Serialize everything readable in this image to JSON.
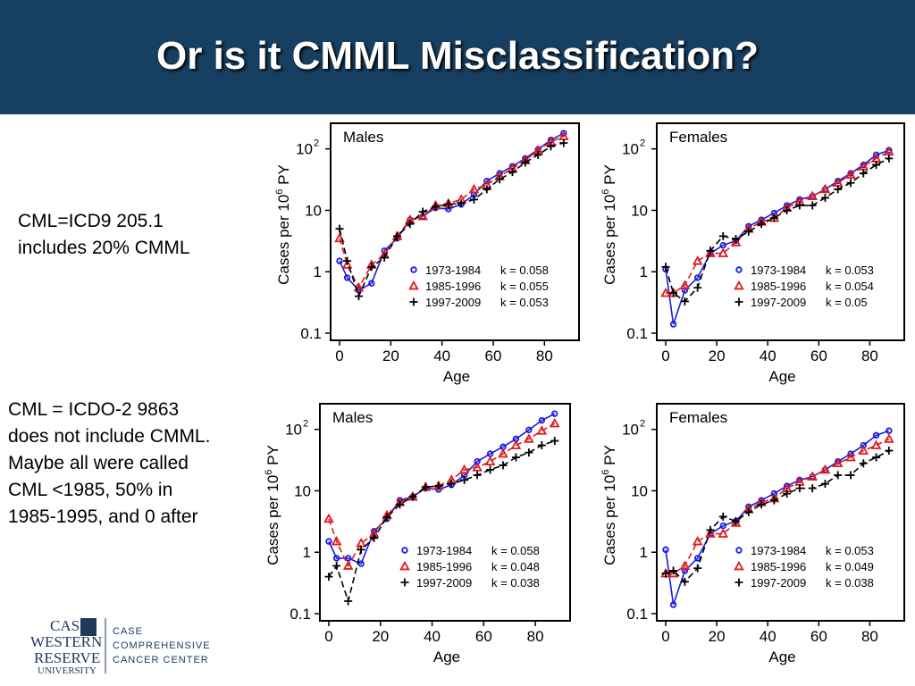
{
  "title": "Or is it CMML Misclassification?",
  "note1": [
    "CML=ICD9 205.1",
    "includes 20% CMML"
  ],
  "note2": [
    "CML = ICDO-2 9863",
    "does not include CMML.",
    "Maybe all were called",
    "CML <1985, 50% in",
    "1985-1995, and 0 after"
  ],
  "logo": {
    "line1": "CASE",
    "line2": "WESTERN",
    "line3": "RESERVE",
    "line4": "UNIVERSITY",
    "center1": "CASE",
    "center2": "COMPREHENSIVE",
    "center3": "CANCER CENTER"
  },
  "colors": {
    "header_bg": "#173f61",
    "series1": "#1a1ae6",
    "series2": "#e01b1b",
    "series3": "#000000"
  },
  "chart_data": [
    {
      "type": "line",
      "title": "Males",
      "xlabel": "Age",
      "ylabel": "Cases per 10^6 PY",
      "ylabel_parts": [
        "Cases per 10",
        "6",
        " PY"
      ],
      "xlim": [
        0,
        90
      ],
      "ylim": [
        0.1,
        200
      ],
      "yscale": "log",
      "xticks": [
        0,
        20,
        40,
        60,
        80
      ],
      "yticks": [
        0.1,
        1,
        10,
        100
      ],
      "yticklabels": [
        "0.1",
        "1",
        "10",
        "10^2"
      ],
      "legend_position": "lower-right",
      "x": [
        0,
        3,
        7.5,
        12.5,
        17.5,
        22.5,
        27.5,
        32.5,
        37.5,
        42.5,
        47.5,
        52.5,
        57.5,
        62.5,
        67.5,
        72.5,
        77.5,
        82.5,
        87.5
      ],
      "series": [
        {
          "name": "1973-1984",
          "k_label": "k = 0.058",
          "marker": "circle",
          "values": [
            1.5,
            0.8,
            0.5,
            0.65,
            2.2,
            3.5,
            7,
            8,
            11,
            10.5,
            12.5,
            18,
            30,
            40,
            52,
            70,
            98,
            140,
            180
          ]
        },
        {
          "name": "1985-1996",
          "k_label": "k = 0.055",
          "marker": "triangle",
          "values": [
            3.5,
            1.3,
            0.55,
            1.3,
            1.9,
            3.8,
            7,
            8,
            12,
            13,
            15,
            22,
            26,
            36,
            48,
            65,
            95,
            130,
            160
          ]
        },
        {
          "name": "1997-2009",
          "k_label": "k = 0.053",
          "marker": "plus",
          "values": [
            5,
            1.5,
            0.4,
            1.2,
            1.7,
            3.8,
            6,
            9.5,
            11.5,
            12.5,
            13,
            15,
            22,
            32,
            42,
            60,
            80,
            110,
            125
          ]
        }
      ]
    },
    {
      "type": "line",
      "title": "Females",
      "xlabel": "Age",
      "ylabel": "Cases per 10^6 PY",
      "ylabel_parts": [
        "Cases per 10",
        "6",
        " PY"
      ],
      "xlim": [
        0,
        90
      ],
      "ylim": [
        0.1,
        200
      ],
      "yscale": "log",
      "xticks": [
        0,
        20,
        40,
        60,
        80
      ],
      "yticks": [
        0.1,
        1,
        10,
        100
      ],
      "yticklabels": [
        "0.1",
        "1",
        "10",
        "10^2"
      ],
      "legend_position": "lower-right",
      "x": [
        0,
        3,
        7.5,
        12.5,
        17.5,
        22.5,
        27.5,
        32.5,
        37.5,
        42.5,
        47.5,
        52.5,
        57.5,
        62.5,
        67.5,
        72.5,
        77.5,
        82.5,
        87.5
      ],
      "series": [
        {
          "name": "1973-1984",
          "k_label": "k = 0.053",
          "marker": "circle",
          "values": [
            1.1,
            0.14,
            0.5,
            0.8,
            2.0,
            2.7,
            3.2,
            5.5,
            7,
            9,
            12,
            15,
            17,
            22,
            30,
            40,
            55,
            80,
            95
          ]
        },
        {
          "name": "1985-1996",
          "k_label": "k = 0.054",
          "marker": "triangle",
          "values": [
            0.45,
            0.45,
            0.6,
            1.5,
            2.0,
            2.0,
            3.0,
            5.0,
            6.5,
            7.5,
            11,
            14,
            17,
            22,
            28,
            38,
            52,
            70,
            90
          ]
        },
        {
          "name": "1997-2009",
          "k_label": "k = 0.05",
          "marker": "plus",
          "values": [
            1.2,
            0.45,
            0.33,
            0.55,
            2.2,
            3.8,
            3.4,
            4.5,
            6,
            7.5,
            10,
            12,
            12,
            16,
            22,
            28,
            40,
            55,
            70
          ]
        }
      ]
    },
    {
      "type": "line",
      "title": "Males",
      "xlabel": "Age",
      "ylabel": "Cases per 10^6 PY",
      "ylabel_parts": [
        "Cases per 10",
        "6",
        " PY"
      ],
      "xlim": [
        0,
        90
      ],
      "ylim": [
        0.1,
        200
      ],
      "yscale": "log",
      "xticks": [
        0,
        20,
        40,
        60,
        80
      ],
      "yticks": [
        0.1,
        1,
        10,
        100
      ],
      "yticklabels": [
        "0.1",
        "1",
        "10",
        "10^2"
      ],
      "legend_position": "lower-right",
      "x": [
        0,
        3,
        7.5,
        12.5,
        17.5,
        22.5,
        27.5,
        32.5,
        37.5,
        42.5,
        47.5,
        52.5,
        57.5,
        62.5,
        67.5,
        72.5,
        77.5,
        82.5,
        87.5
      ],
      "series": [
        {
          "name": "1973-1984",
          "k_label": "k = 0.058",
          "marker": "circle",
          "values": [
            1.5,
            0.8,
            0.8,
            0.65,
            2.2,
            3.5,
            7,
            8,
            11,
            10.5,
            12.5,
            18,
            30,
            40,
            52,
            70,
            98,
            140,
            180
          ]
        },
        {
          "name": "1985-1996",
          "k_label": "k = 0.048",
          "marker": "triangle",
          "values": [
            3.5,
            1.5,
            0.6,
            1.4,
            2.0,
            4.0,
            6.5,
            8,
            11.5,
            12,
            15,
            22,
            24,
            30,
            40,
            55,
            70,
            95,
            125
          ]
        },
        {
          "name": "1997-2009",
          "k_label": "k = 0.038",
          "marker": "plus",
          "values": [
            0.4,
            0.6,
            0.16,
            1.1,
            1.7,
            3.7,
            6,
            8,
            11.5,
            12,
            13,
            15,
            18,
            22,
            26,
            35,
            42,
            55,
            65
          ]
        }
      ]
    },
    {
      "type": "line",
      "title": "Females",
      "xlabel": "Age",
      "ylabel": "Cases per 10^6 PY",
      "ylabel_parts": [
        "Cases per 10",
        "6",
        " PY"
      ],
      "xlim": [
        0,
        90
      ],
      "ylim": [
        0.1,
        200
      ],
      "yscale": "log",
      "xticks": [
        0,
        20,
        40,
        60,
        80
      ],
      "yticks": [
        0.1,
        1,
        10,
        100
      ],
      "yticklabels": [
        "0.1",
        "1",
        "10",
        "10^2"
      ],
      "legend_position": "lower-right",
      "x": [
        0,
        3,
        7.5,
        12.5,
        17.5,
        22.5,
        27.5,
        32.5,
        37.5,
        42.5,
        47.5,
        52.5,
        57.5,
        62.5,
        67.5,
        72.5,
        77.5,
        82.5,
        87.5
      ],
      "series": [
        {
          "name": "1973-1984",
          "k_label": "k = 0.053",
          "marker": "circle",
          "values": [
            1.1,
            0.14,
            0.5,
            0.8,
            2.0,
            2.7,
            3.2,
            5.5,
            7,
            9,
            12,
            15,
            17,
            22,
            30,
            40,
            55,
            80,
            95
          ]
        },
        {
          "name": "1985-1996",
          "k_label": "k = 0.049",
          "marker": "triangle",
          "values": [
            0.45,
            0.45,
            0.6,
            1.5,
            2.0,
            2.0,
            3.0,
            5.0,
            6.5,
            7.5,
            11,
            14,
            17,
            22,
            28,
            35,
            45,
            55,
            70
          ]
        },
        {
          "name": "1997-2009",
          "k_label": "k = 0.038",
          "marker": "plus",
          "values": [
            0.45,
            0.5,
            0.33,
            0.55,
            2.3,
            3.8,
            3.2,
            4.5,
            6,
            7,
            9,
            11,
            11,
            13,
            18,
            18,
            28,
            35,
            45
          ]
        }
      ]
    }
  ]
}
